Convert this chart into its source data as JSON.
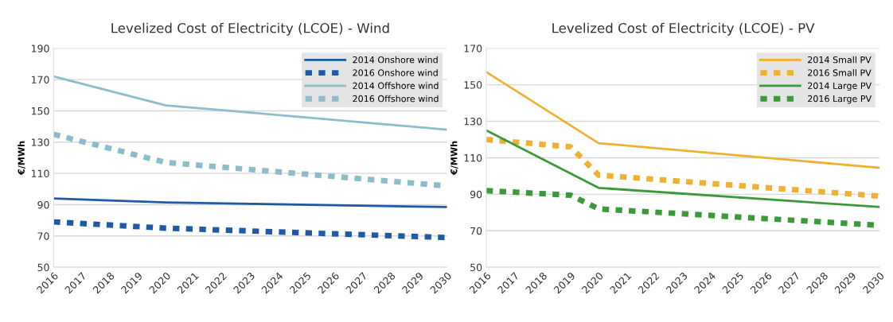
{
  "chart_data": [
    {
      "type": "line",
      "title": "Levelized Cost of Electricity (LCOE) - Wind",
      "ylabel": "€/MWh",
      "xlim": [
        2016,
        2030
      ],
      "xticks": [
        2016,
        2017,
        2018,
        2019,
        2020,
        2021,
        2022,
        2023,
        2024,
        2025,
        2026,
        2027,
        2028,
        2029,
        2030
      ],
      "ylim": [
        50,
        190
      ],
      "yticks": [
        50,
        70,
        90,
        110,
        130,
        150,
        170,
        190
      ],
      "grid": "y",
      "legend": "top right",
      "marker": "none",
      "series": [
        {
          "name": "2014 Onshore wind",
          "color": "#1f5aa6",
          "line_style": "solid",
          "x": [
            2016,
            2020,
            2030
          ],
          "values": [
            94,
            91.5,
            88.5
          ]
        },
        {
          "name": "2016 Onshore wind",
          "color": "#1f5aa6",
          "line_style": "dashed",
          "x": [
            2016,
            2020,
            2030
          ],
          "values": [
            79,
            75,
            69
          ]
        },
        {
          "name": "2014 Offshore wind",
          "color": "#8dbccc",
          "line_style": "solid",
          "x": [
            2016,
            2020,
            2030
          ],
          "values": [
            172,
            153.5,
            138
          ]
        },
        {
          "name": "2016 Offshore wind",
          "color": "#8dbccc",
          "line_style": "dashed",
          "x": [
            2016,
            2020,
            2030
          ],
          "values": [
            135,
            117,
            102
          ]
        }
      ]
    },
    {
      "type": "line",
      "title": "Levelized Cost of Electricity (LCOE) - PV",
      "ylabel": "€/MWh",
      "xlim": [
        2016,
        2030
      ],
      "xticks": [
        2016,
        2017,
        2018,
        2019,
        2020,
        2021,
        2022,
        2023,
        2024,
        2025,
        2026,
        2027,
        2028,
        2029,
        2030
      ],
      "ylim": [
        50,
        170
      ],
      "yticks": [
        50,
        70,
        90,
        110,
        130,
        150,
        170
      ],
      "grid": "y",
      "legend": "top right",
      "marker": "none",
      "series": [
        {
          "name": "2014 Small PV",
          "color": "#f0b030",
          "line_style": "solid",
          "x": [
            2016,
            2020,
            2030
          ],
          "values": [
            157,
            118,
            104.5
          ]
        },
        {
          "name": "2016 Small PV",
          "color": "#f0b030",
          "line_style": "dashed",
          "x": [
            2016,
            2019,
            2020,
            2030
          ],
          "values": [
            120,
            116,
            100.5,
            89
          ]
        },
        {
          "name": "2014 Large PV",
          "color": "#3a9a3a",
          "line_style": "solid",
          "x": [
            2016,
            2020,
            2030
          ],
          "values": [
            125,
            93.5,
            83
          ]
        },
        {
          "name": "2016 Large PV",
          "color": "#3a9a3a",
          "line_style": "dashed",
          "x": [
            2016,
            2019,
            2020,
            2030
          ],
          "values": [
            92,
            89.5,
            82,
            73
          ]
        }
      ]
    }
  ]
}
